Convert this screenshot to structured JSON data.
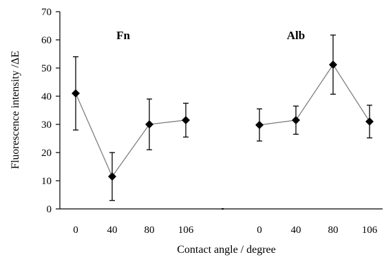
{
  "chart_data": {
    "type": "line",
    "title": "",
    "xlabel": "Contact angle / degree",
    "ylabel": "Fluorescence intensity /ΔE",
    "ylim": [
      0,
      70
    ],
    "yticks": [
      0,
      10,
      20,
      30,
      40,
      50,
      60,
      70
    ],
    "grid": false,
    "legend": "none",
    "marker": "diamond",
    "colors": {
      "line": "#7f7f7f",
      "marker": "#000000",
      "axis": "#000000"
    },
    "groups": [
      {
        "label": "Fn",
        "x": [
          "0",
          "40",
          "80",
          "106"
        ],
        "values": [
          41,
          11.5,
          30,
          31.5
        ],
        "error": [
          13,
          8.5,
          9,
          6
        ]
      },
      {
        "label": "Alb",
        "x": [
          "0",
          "40",
          "80",
          "106"
        ],
        "values": [
          29.8,
          31.5,
          51.2,
          31
        ],
        "error": [
          5.7,
          5,
          10.5,
          5.8
        ]
      }
    ]
  }
}
